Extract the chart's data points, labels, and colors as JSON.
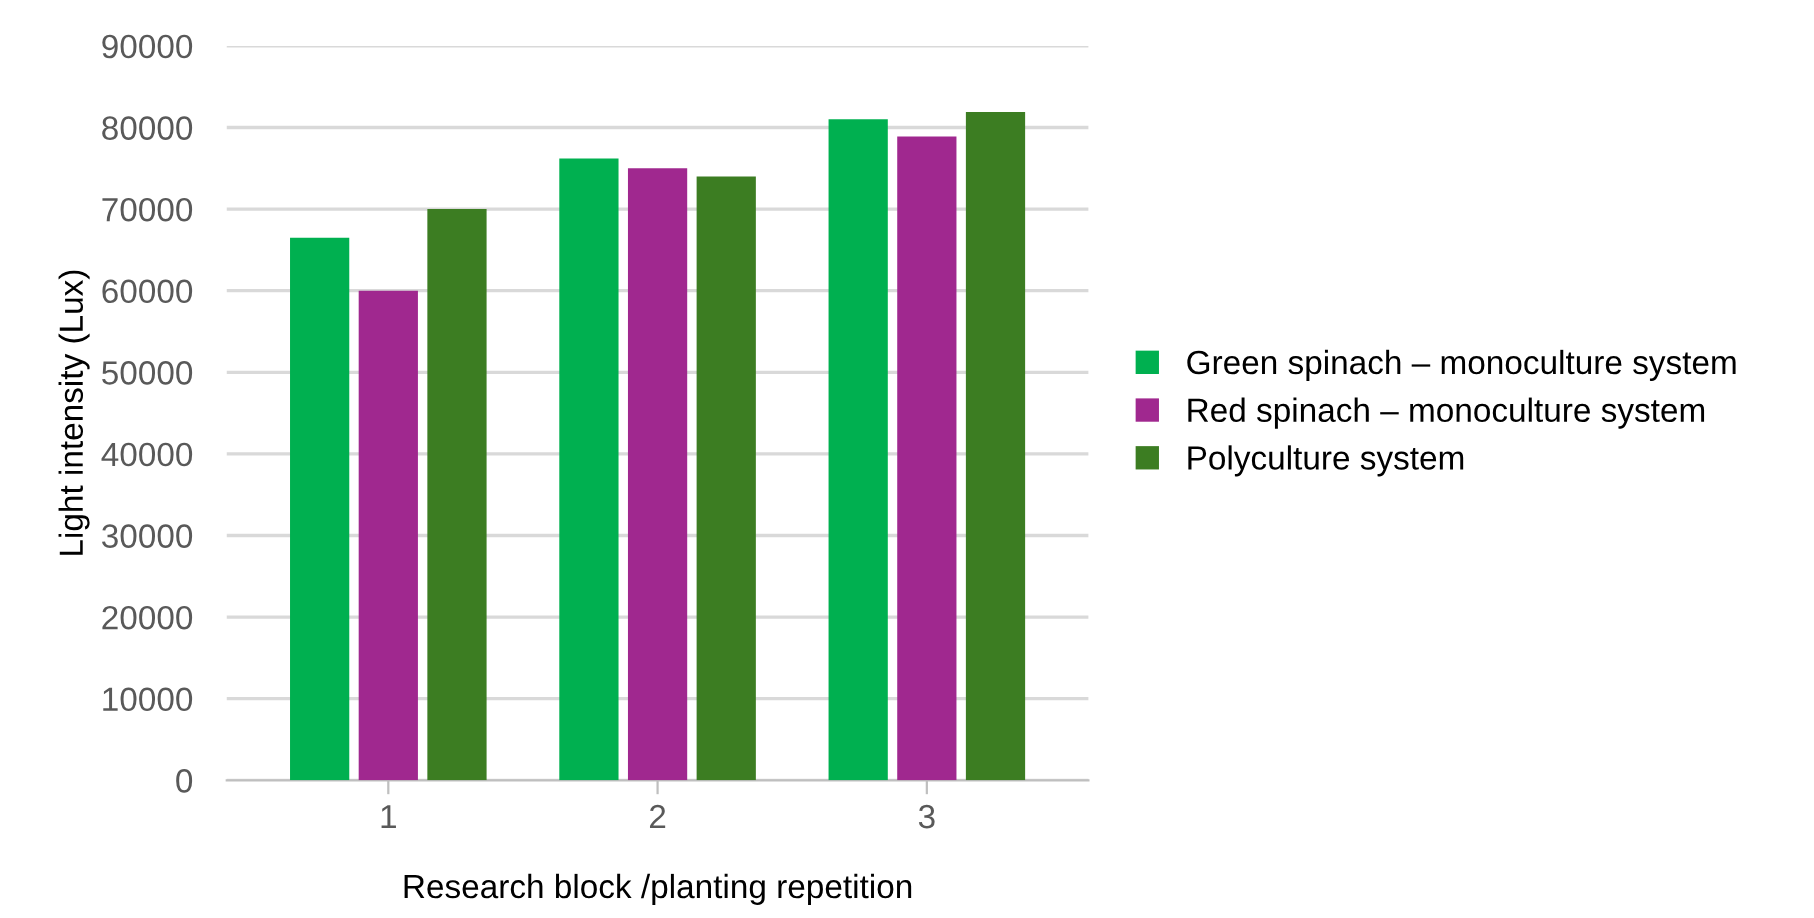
{
  "chart_data": {
    "type": "bar",
    "xlabel": "Research block /planting repetition",
    "ylabel": "Light intensity (Lux)",
    "categories": [
      "1",
      "2",
      "3"
    ],
    "series": [
      {
        "name": "Green spinach – monoculture system",
        "color": "#00b050",
        "values": [
          66500,
          76200,
          81000
        ]
      },
      {
        "name": "Red spinach – monoculture system",
        "color": "#a0288f",
        "values": [
          60000,
          75000,
          78900
        ]
      },
      {
        "name": "Polyculture system",
        "color": "#3c7d22",
        "values": [
          70000,
          74000,
          81900
        ]
      }
    ],
    "ylim": [
      0,
      90000
    ],
    "yticks": [
      0,
      10000,
      20000,
      30000,
      40000,
      50000,
      60000,
      70000,
      80000,
      90000
    ],
    "grid": "y",
    "legend": "right"
  }
}
